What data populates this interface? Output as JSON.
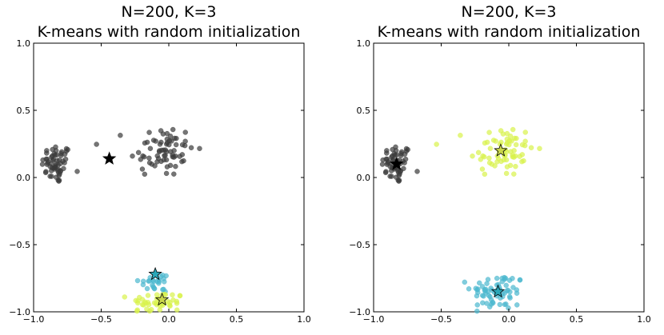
{
  "chart_data": [
    {
      "type": "scatter",
      "title_line1": "N=200, K=3",
      "title_line2": "K-means with random initialization",
      "xlim": [
        -1.0,
        1.0
      ],
      "ylim": [
        -1.0,
        1.0
      ],
      "xticks": [
        "−1.0",
        "−0.5",
        "0.0",
        "0.5",
        "1.0"
      ],
      "yticks": [
        "1.0",
        "0.5",
        "0.0",
        "−0.5",
        "−1.0"
      ],
      "grid": false,
      "clusters": [
        {
          "color": "#3a3a3a",
          "center": [
            -0.83,
            0.1
          ],
          "spread": [
            0.055,
            0.075
          ],
          "count": 60
        },
        {
          "color": "#3a3a3a",
          "center": [
            -0.05,
            0.2
          ],
          "spread": [
            0.12,
            0.1
          ],
          "count": 70
        },
        {
          "color": "#4bb8cf",
          "center": [
            -0.08,
            -0.78
          ],
          "spread": [
            0.07,
            0.04
          ],
          "count": 25
        },
        {
          "color": "#d8f24b",
          "center": [
            -0.08,
            -0.93
          ],
          "spread": [
            0.1,
            0.04
          ],
          "count": 45
        }
      ],
      "centroids": [
        {
          "x": -0.44,
          "y": 0.14,
          "color": "#000000"
        },
        {
          "x": -0.1,
          "y": -0.72,
          "color": "#2aa7b8"
        },
        {
          "x": -0.05,
          "y": -0.91,
          "color": "#c9d64a"
        }
      ]
    },
    {
      "type": "scatter",
      "title_line1": "N=200, K=3",
      "title_line2": "K-means with random initialization",
      "xlim": [
        -1.0,
        1.0
      ],
      "ylim": [
        -1.0,
        1.0
      ],
      "xticks": [
        "−1.0",
        "−0.5",
        "0.0",
        "0.5",
        "1.0"
      ],
      "yticks": [
        "1.0",
        "0.5",
        "0.0",
        "−0.5",
        "−1.0"
      ],
      "grid": false,
      "clusters": [
        {
          "color": "#3a3a3a",
          "center": [
            -0.83,
            0.1
          ],
          "spread": [
            0.055,
            0.075
          ],
          "count": 60
        },
        {
          "color": "#d8f24b",
          "center": [
            -0.05,
            0.2
          ],
          "spread": [
            0.12,
            0.1
          ],
          "count": 70
        },
        {
          "color": "#4bb8cf",
          "center": [
            -0.08,
            -0.85
          ],
          "spread": [
            0.1,
            0.07
          ],
          "count": 70
        }
      ],
      "centroids": [
        {
          "x": -0.83,
          "y": 0.1,
          "color": "#000000"
        },
        {
          "x": -0.06,
          "y": 0.2,
          "color": "#c9d64a"
        },
        {
          "x": -0.08,
          "y": -0.85,
          "color": "#2aa7b8"
        }
      ]
    }
  ]
}
